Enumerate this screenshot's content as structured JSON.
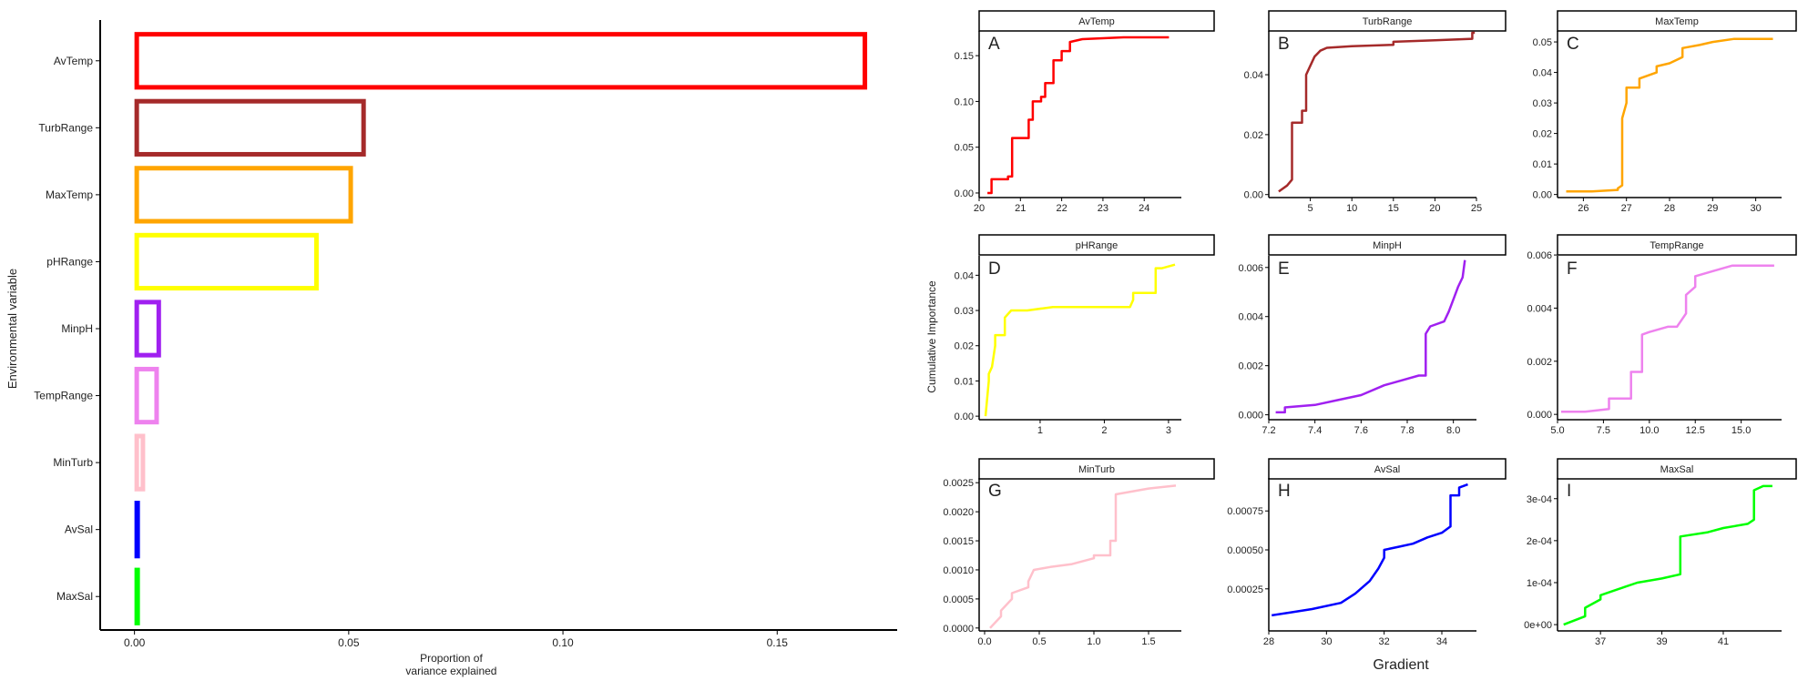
{
  "chart_data": [
    {
      "type": "bar",
      "orientation": "horizontal",
      "categories": [
        "AvTemp",
        "TurbRange",
        "MaxTemp",
        "pHRange",
        "MinpH",
        "TempRange",
        "MinTurb",
        "AvSal",
        "MaxSal"
      ],
      "values": [
        0.171,
        0.054,
        0.051,
        0.043,
        0.0062,
        0.0057,
        0.0025,
        0.00095,
        0.00033
      ],
      "colors": [
        "#ff0000",
        "#a52a2a",
        "#ffa500",
        "#ffff00",
        "#a020f0",
        "#ee82ee",
        "#ffc0cb",
        "#0000ff",
        "#00ff00"
      ],
      "xlabel": [
        "Proportion of",
        "variance explained"
      ],
      "ylabel": "Environmental variable",
      "xticks": [
        "0.00",
        "0.05",
        "0.10",
        "0.15"
      ],
      "xtick_values": [
        0,
        0.05,
        0.1,
        0.15
      ],
      "xlim": [
        -0.008,
        0.178
      ]
    },
    {
      "type": "line",
      "layout": "facet-grid-3x3",
      "shared_ylabel": "Cumulative Importance",
      "shared_xlabel": "Gradient",
      "panels": [
        {
          "strip": "AvTemp",
          "letter": "A",
          "color": "#ff0000",
          "xlim": [
            20,
            24.9
          ],
          "ylim": [
            -0.005,
            0.175
          ],
          "xticks": [
            "20",
            "21",
            "22",
            "23",
            "24"
          ],
          "xtick_values": [
            20,
            21,
            22,
            23,
            24
          ],
          "yticks": [
            "0.00",
            "0.05",
            "0.10",
            "0.15"
          ],
          "ytick_values": [
            0,
            0.05,
            0.1,
            0.15
          ],
          "x": [
            20.2,
            20.3,
            20.3,
            20.7,
            20.7,
            20.8,
            20.8,
            21.2,
            21.2,
            21.3,
            21.3,
            21.5,
            21.5,
            21.6,
            21.6,
            21.8,
            21.8,
            22.0,
            22.0,
            22.2,
            22.2,
            22.5,
            23.5,
            24.6
          ],
          "y": [
            0.0,
            0.0,
            0.015,
            0.015,
            0.018,
            0.018,
            0.06,
            0.06,
            0.08,
            0.08,
            0.1,
            0.1,
            0.105,
            0.105,
            0.12,
            0.12,
            0.145,
            0.145,
            0.155,
            0.155,
            0.165,
            0.168,
            0.17,
            0.17
          ]
        },
        {
          "strip": "TurbRange",
          "letter": "B",
          "color": "#a52a2a",
          "xlim": [
            0,
            25
          ],
          "ylim": [
            -0.001,
            0.054
          ],
          "xticks": [
            "5",
            "10",
            "15",
            "20",
            "25"
          ],
          "xtick_values": [
            5,
            10,
            15,
            20,
            25
          ],
          "yticks": [
            "0.00",
            "0.02",
            "0.04"
          ],
          "ytick_values": [
            0,
            0.02,
            0.04
          ],
          "x": [
            1.2,
            2.2,
            2.8,
            2.8,
            4.0,
            4.0,
            4.5,
            4.5,
            5.0,
            5.5,
            6.2,
            7.0,
            10.0,
            15.0,
            15.0,
            20.0,
            24.5,
            24.5,
            24.8
          ],
          "y": [
            0.001,
            0.003,
            0.005,
            0.024,
            0.024,
            0.028,
            0.028,
            0.04,
            0.043,
            0.046,
            0.048,
            0.049,
            0.0495,
            0.05,
            0.051,
            0.0515,
            0.052,
            0.054,
            0.054
          ]
        },
        {
          "strip": "MaxTemp",
          "letter": "C",
          "color": "#ffa500",
          "xlim": [
            25.4,
            30.6
          ],
          "ylim": [
            -0.001,
            0.053
          ],
          "xticks": [
            "26",
            "27",
            "28",
            "29",
            "30"
          ],
          "xtick_values": [
            26,
            27,
            28,
            29,
            30
          ],
          "yticks": [
            "0.00",
            "0.01",
            "0.02",
            "0.03",
            "0.04",
            "0.05"
          ],
          "ytick_values": [
            0,
            0.01,
            0.02,
            0.03,
            0.04,
            0.05
          ],
          "x": [
            25.6,
            26.2,
            26.8,
            26.8,
            26.9,
            26.9,
            27.0,
            27.0,
            27.3,
            27.3,
            27.7,
            27.7,
            28.0,
            28.3,
            28.3,
            28.7,
            29.0,
            29.5,
            30.4
          ],
          "y": [
            0.001,
            0.001,
            0.0015,
            0.002,
            0.003,
            0.025,
            0.03,
            0.035,
            0.035,
            0.038,
            0.04,
            0.042,
            0.043,
            0.045,
            0.048,
            0.049,
            0.05,
            0.051,
            0.051
          ]
        },
        {
          "strip": "pHRange",
          "letter": "D",
          "color": "#ffff00",
          "xlim": [
            0.05,
            3.2
          ],
          "ylim": [
            -0.001,
            0.045
          ],
          "xticks": [
            "1",
            "2",
            "3"
          ],
          "xtick_values": [
            1,
            2,
            3
          ],
          "yticks": [
            "0.00",
            "0.01",
            "0.02",
            "0.03",
            "0.04"
          ],
          "ytick_values": [
            0,
            0.01,
            0.02,
            0.03,
            0.04
          ],
          "x": [
            0.15,
            0.2,
            0.2,
            0.25,
            0.3,
            0.3,
            0.45,
            0.45,
            0.55,
            0.8,
            1.2,
            2.4,
            2.45,
            2.45,
            2.8,
            2.8,
            2.9,
            3.1
          ],
          "y": [
            0.0,
            0.01,
            0.012,
            0.014,
            0.02,
            0.023,
            0.023,
            0.028,
            0.03,
            0.03,
            0.031,
            0.031,
            0.033,
            0.035,
            0.035,
            0.042,
            0.042,
            0.043
          ]
        },
        {
          "strip": "MinpH",
          "letter": "E",
          "color": "#a020f0",
          "xlim": [
            7.2,
            8.1
          ],
          "ylim": [
            -0.0002,
            0.0064
          ],
          "xticks": [
            "7.2",
            "7.4",
            "7.6",
            "7.8",
            "8.0"
          ],
          "xtick_values": [
            7.2,
            7.4,
            7.6,
            7.8,
            8.0
          ],
          "yticks": [
            "0.000",
            "0.002",
            "0.004",
            "0.006"
          ],
          "ytick_values": [
            0,
            0.002,
            0.004,
            0.006
          ],
          "x": [
            7.23,
            7.27,
            7.27,
            7.4,
            7.5,
            7.6,
            7.7,
            7.85,
            7.88,
            7.88,
            7.9,
            7.96,
            7.98,
            8.0,
            8.02,
            8.04,
            8.05
          ],
          "y": [
            0.0001,
            0.0001,
            0.0003,
            0.0004,
            0.0006,
            0.0008,
            0.0012,
            0.0016,
            0.0016,
            0.0033,
            0.0036,
            0.0038,
            0.0042,
            0.0047,
            0.0052,
            0.0056,
            0.0063
          ]
        },
        {
          "strip": "TempRange",
          "letter": "F",
          "color": "#ee82ee",
          "xlim": [
            5,
            17.2
          ],
          "ylim": [
            -0.0002,
            0.0059
          ],
          "xticks": [
            "5.0",
            "7.5",
            "10.0",
            "12.5",
            "15.0"
          ],
          "xtick_values": [
            5,
            7.5,
            10,
            12.5,
            15
          ],
          "yticks": [
            "0.000",
            "0.002",
            "0.004",
            "0.006"
          ],
          "ytick_values": [
            0,
            0.002,
            0.004,
            0.006
          ],
          "x": [
            5.2,
            6.5,
            7.8,
            7.8,
            9.0,
            9.0,
            9.6,
            9.6,
            10.0,
            11.0,
            11.5,
            12.0,
            12.0,
            12.5,
            12.5,
            13.5,
            14.5,
            16.8
          ],
          "y": [
            0.0001,
            0.0001,
            0.0002,
            0.0006,
            0.0006,
            0.0016,
            0.0016,
            0.003,
            0.0031,
            0.0033,
            0.0033,
            0.0038,
            0.0045,
            0.0048,
            0.0052,
            0.0054,
            0.0056,
            0.0056
          ]
        },
        {
          "strip": "MinTurb",
          "letter": "G",
          "color": "#ffc0cb",
          "xlim": [
            -0.05,
            1.8
          ],
          "ylim": [
            -5e-05,
            0.00255
          ],
          "xticks": [
            "0.0",
            "0.5",
            "1.0",
            "1.5"
          ],
          "xtick_values": [
            0,
            0.5,
            1.0,
            1.5
          ],
          "yticks": [
            "0.0000",
            "0.0005",
            "0.0010",
            "0.0015",
            "0.0020",
            "0.0025"
          ],
          "ytick_values": [
            0,
            0.0005,
            0.001,
            0.0015,
            0.002,
            0.0025
          ],
          "x": [
            0.05,
            0.15,
            0.15,
            0.25,
            0.25,
            0.4,
            0.4,
            0.45,
            0.6,
            0.8,
            1.0,
            1.0,
            1.15,
            1.15,
            1.2,
            1.2,
            1.5,
            1.75
          ],
          "y": [
            0.0,
            0.0002,
            0.0003,
            0.0005,
            0.0006,
            0.0007,
            0.0008,
            0.001,
            0.00105,
            0.0011,
            0.0012,
            0.00125,
            0.00125,
            0.0015,
            0.0015,
            0.0023,
            0.0024,
            0.00245
          ]
        },
        {
          "strip": "AvSal",
          "letter": "H",
          "color": "#0000ff",
          "xlim": [
            28,
            35.2
          ],
          "ylim": [
            -2e-05,
            0.00095
          ],
          "xticks": [
            "28",
            "30",
            "32",
            "34"
          ],
          "xtick_values": [
            28,
            30,
            32,
            34
          ],
          "yticks": [
            "0.00025",
            "0.00050",
            "0.00075"
          ],
          "ytick_values": [
            0.00025,
            0.0005,
            0.00075
          ],
          "x": [
            28.1,
            28.8,
            29.5,
            30.5,
            31.0,
            31.5,
            31.8,
            32.0,
            32.0,
            32.5,
            33.0,
            33.5,
            34.0,
            34.3,
            34.3,
            34.6,
            34.6,
            34.9
          ],
          "y": [
            8e-05,
            0.0001,
            0.00012,
            0.00016,
            0.00022,
            0.0003,
            0.00038,
            0.00045,
            0.0005,
            0.00052,
            0.00054,
            0.00058,
            0.00061,
            0.00065,
            0.00085,
            0.00085,
            0.0009,
            0.00092
          ]
        },
        {
          "strip": "MaxSal",
          "letter": "I",
          "color": "#00ff00",
          "xlim": [
            35.6,
            42.9
          ],
          "ylim": [
            -1.5e-05,
            0.000345
          ],
          "xticks": [
            "37",
            "39",
            "41"
          ],
          "xtick_values": [
            37,
            39,
            41
          ],
          "yticks": [
            "0e+00",
            "1e-04",
            "2e-04",
            "3e-04"
          ],
          "ytick_values": [
            0,
            0.0001,
            0.0002,
            0.0003
          ],
          "x": [
            35.8,
            36.5,
            36.5,
            37.0,
            37.0,
            37.8,
            38.2,
            39.0,
            39.6,
            39.6,
            40.5,
            41.0,
            41.8,
            42.0,
            42.0,
            42.3,
            42.6
          ],
          "y": [
            0.0,
            2e-05,
            4e-05,
            6e-05,
            7e-05,
            9e-05,
            0.0001,
            0.00011,
            0.00012,
            0.00021,
            0.00022,
            0.00023,
            0.00024,
            0.00025,
            0.00032,
            0.00033,
            0.00033
          ]
        }
      ]
    }
  ]
}
